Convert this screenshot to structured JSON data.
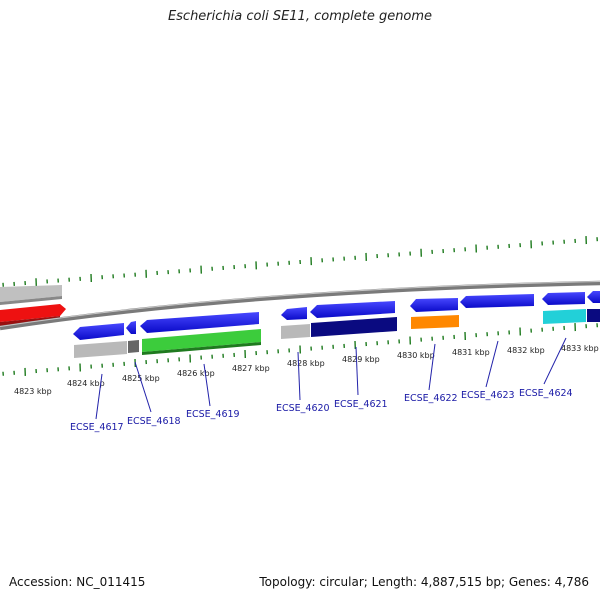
{
  "title": "Escherichia coli SE11, complete genome",
  "footer": {
    "accession": "Accession: NC_011415",
    "topology": "Topology: circular; Length: 4,887,515 bp; Genes: 4,786"
  },
  "kbp_ticks": [
    "4823 kbp",
    "4824 kbp",
    "4825 kbp",
    "4826 kbp",
    "4827 kbp",
    "4828 kbp",
    "4829 kbp",
    "4830 kbp",
    "4831 kbp",
    "4832 kbp",
    "4833 kbp"
  ],
  "gene_labels": [
    "ECSE_4617",
    "ECSE_4618",
    "ECSE_4619",
    "ECSE_4620",
    "ECSE_4621",
    "ECSE_4622",
    "ECSE_4623",
    "ECSE_4624"
  ],
  "colors": {
    "blue": "#1010e8",
    "navy": "#0a0a80",
    "grey": "#b8b8b8",
    "dark_grey": "#666666",
    "green": "#3ccc3c",
    "orange": "#ff8800",
    "cyan": "#22d0d8",
    "red": "#ee1111",
    "backbone": "#888888",
    "tick_green": "#1d7a1d",
    "label_blue": "#1a1aa6"
  }
}
